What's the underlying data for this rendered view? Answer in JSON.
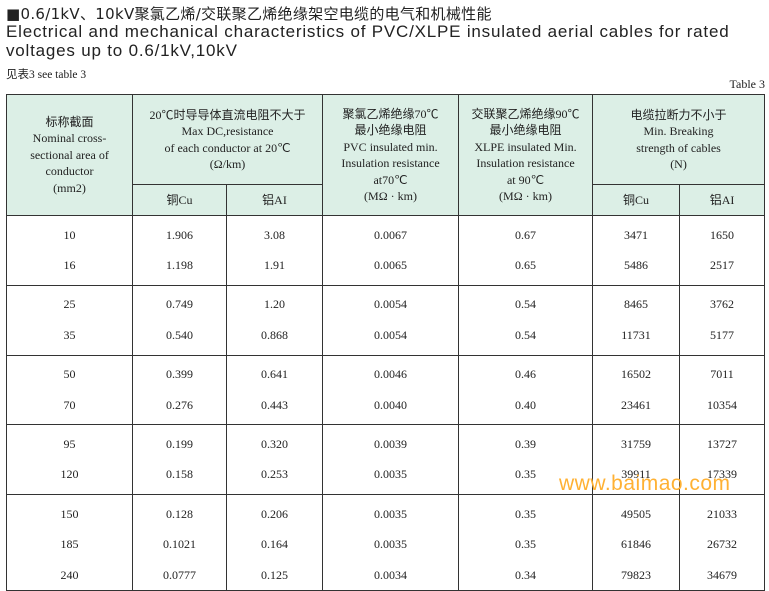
{
  "title_cn": "■0.6/1kV、10kV聚氯乙烯/交联聚乙烯绝缘架空电缆的电气和机械性能",
  "title_en_line1": "Electrical and mechanical characteristics of PVC/XLPE insulated aerial cables for rated",
  "title_en_line2": "voltages up to 0.6/1kV,10kV",
  "see_table": "见表3  see table 3",
  "table_label": "Table 3",
  "headers": {
    "area": [
      "标称截面",
      "Nominal cross-",
      "sectional area of",
      "conductor",
      "(mm2)"
    ],
    "resistance": [
      "20℃时导导体直流电阻不大于",
      "Max DC,resistance",
      "of each conductor at 20℃",
      "(Ω/km)"
    ],
    "pvc": [
      "聚氯乙烯绝缘70℃",
      "最小绝缘电阻",
      "PVC insulated min.",
      "Insulation resistance",
      "at70℃",
      "(MΩ · km)"
    ],
    "xlpe": [
      "交联聚乙烯绝缘90℃",
      "最小绝缘电阻",
      "XLPE insulated Min.",
      "Insulation resistance",
      "at 90℃",
      "(MΩ · km)"
    ],
    "breaking": [
      "电缆拉断力不小于",
      "Min. Breaking",
      "strength of cables",
      "(N)"
    ],
    "res_cu": "铜Cu",
    "res_al": "铝AI",
    "brk_cu": "铜Cu",
    "brk_al": "铝AI"
  },
  "rows": [
    {
      "area": "10",
      "res_cu": "1.906",
      "res_al": "3.08",
      "pvc": "0.0067",
      "xlpe": "0.67",
      "brk_cu": "3471",
      "brk_al": "1650"
    },
    {
      "area": "16",
      "res_cu": "1.198",
      "res_al": "1.91",
      "pvc": "0.0065",
      "xlpe": "0.65",
      "brk_cu": "5486",
      "brk_al": "2517"
    },
    {
      "area": "25",
      "res_cu": "0.749",
      "res_al": "1.20",
      "pvc": "0.0054",
      "xlpe": "0.54",
      "brk_cu": "8465",
      "brk_al": "3762"
    },
    {
      "area": "35",
      "res_cu": "0.540",
      "res_al": "0.868",
      "pvc": "0.0054",
      "xlpe": "0.54",
      "brk_cu": "11731",
      "brk_al": "5177"
    },
    {
      "area": "50",
      "res_cu": "0.399",
      "res_al": "0.641",
      "pvc": "0.0046",
      "xlpe": "0.46",
      "brk_cu": "16502",
      "brk_al": "7011"
    },
    {
      "area": "70",
      "res_cu": "0.276",
      "res_al": "0.443",
      "pvc": "0.0040",
      "xlpe": "0.40",
      "brk_cu": "23461",
      "brk_al": "10354"
    },
    {
      "area": "95",
      "res_cu": "0.199",
      "res_al": "0.320",
      "pvc": "0.0039",
      "xlpe": "0.39",
      "brk_cu": "31759",
      "brk_al": "13727"
    },
    {
      "area": "120",
      "res_cu": "0.158",
      "res_al": "0.253",
      "pvc": "0.0035",
      "xlpe": "0.35",
      "brk_cu": "39911",
      "brk_al": "17339"
    },
    {
      "area": "150",
      "res_cu": "0.128",
      "res_al": "0.206",
      "pvc": "0.0035",
      "xlpe": "0.35",
      "brk_cu": "49505",
      "brk_al": "21033"
    },
    {
      "area": "185",
      "res_cu": "0.1021",
      "res_al": "0.164",
      "pvc": "0.0035",
      "xlpe": "0.35",
      "brk_cu": "61846",
      "brk_al": "26732"
    },
    {
      "area": "240",
      "res_cu": "0.0777",
      "res_al": "0.125",
      "pvc": "0.0034",
      "xlpe": "0.34",
      "brk_cu": "79823",
      "brk_al": "34679"
    }
  ],
  "watermark": "www.baimao.com",
  "colors": {
    "header_bg": "#dcefe6",
    "watermark": "#ffb133",
    "border": "#333333"
  }
}
